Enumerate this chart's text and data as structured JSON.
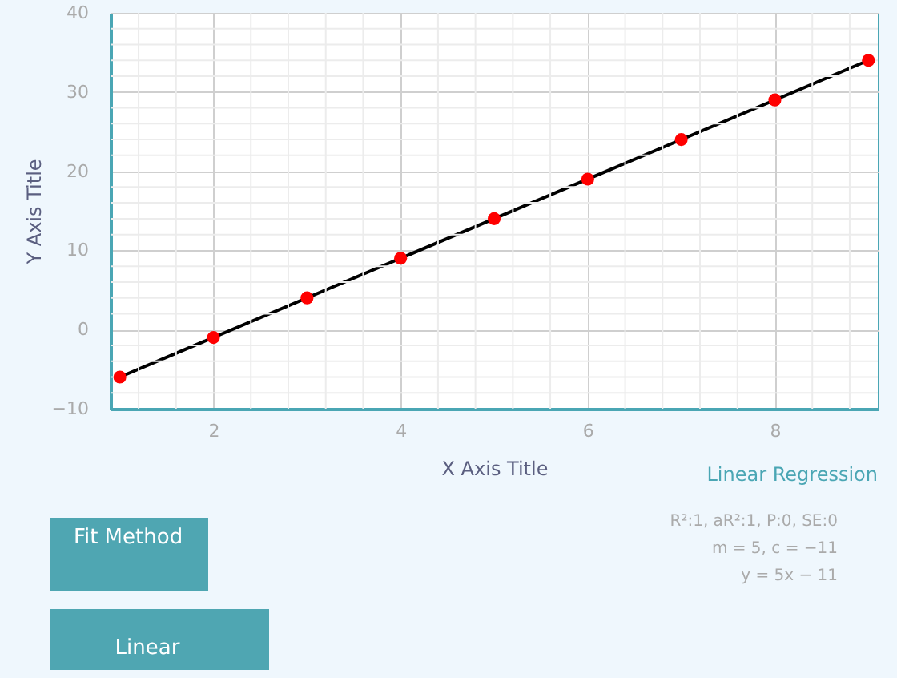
{
  "chart_data": {
    "type": "scatter",
    "xlabel": "X Axis Title",
    "ylabel": "Y Axis Title",
    "x": [
      1,
      2,
      3,
      4,
      5,
      6,
      7,
      8,
      9
    ],
    "series": [
      {
        "type": "line",
        "x": [
          1,
          9
        ],
        "values": [
          -6,
          34
        ],
        "color": "#000000"
      },
      {
        "marker": "circle",
        "color": "#ff0000",
        "values": [
          -6,
          -1,
          4,
          9,
          14,
          19,
          24,
          29,
          34
        ]
      }
    ],
    "xlim": [
      0.9,
      9.1
    ],
    "ylim": [
      -10,
      40
    ],
    "xticks": [
      2,
      4,
      6,
      8
    ],
    "yticks": [
      -10,
      0,
      10,
      20,
      30,
      40
    ],
    "grid": true,
    "annotations": [
      "Linear Regression",
      "R²:1, aR²:1, P:0, SE:0",
      "m = 5, c = −11",
      "y = 5x − 11",
      "Fit Method",
      "Linear"
    ]
  }
}
